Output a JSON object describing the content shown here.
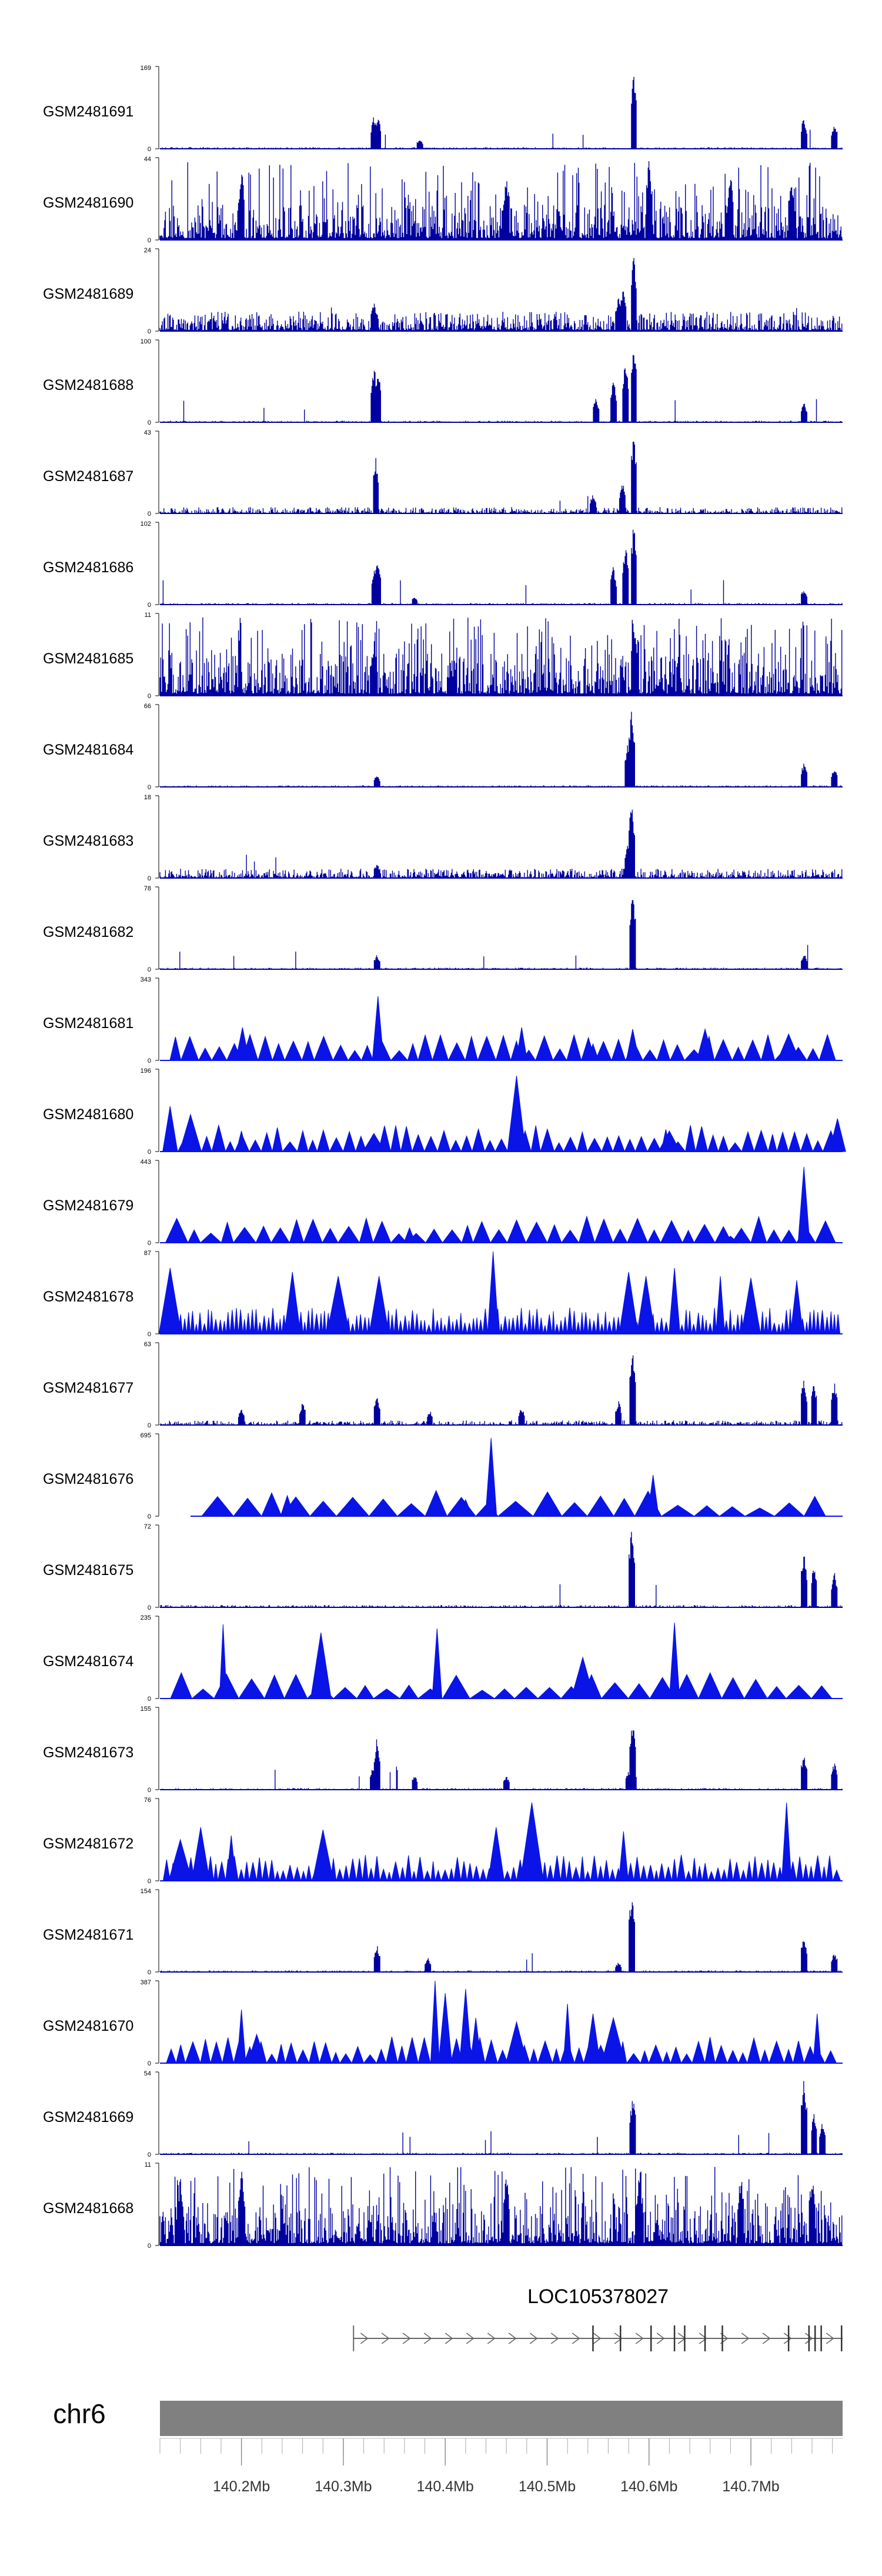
{
  "colors": {
    "signal": "#0000a0",
    "triangle": "#0a14e6",
    "axis": "#000000",
    "ideogram": "#808080",
    "gene": "#666666"
  },
  "chart_data": {
    "type": "area",
    "xunit": "Mb",
    "xlim": [
      140.12,
      140.79
    ],
    "tracks": [
      {
        "name": "GSM2481691",
        "ymax": "169",
        "ymin": "0",
        "style": "bars",
        "noise": 0.02,
        "peaks": [
          [
            140.33,
            0.42
          ],
          [
            140.334,
            0.4
          ],
          [
            140.585,
            1.0
          ],
          [
            140.752,
            0.4
          ],
          [
            140.782,
            0.32
          ],
          [
            140.375,
            0.12
          ]
        ]
      },
      {
        "name": "GSM2481690",
        "ymax": "44",
        "ymin": "0",
        "style": "bars",
        "noise": 0.45,
        "peaks": [
          [
            140.2,
            0.9
          ],
          [
            140.46,
            0.85
          ],
          [
            140.6,
            1.0
          ],
          [
            140.68,
            0.85
          ],
          [
            140.74,
            0.8
          ]
        ]
      },
      {
        "name": "GSM2481689",
        "ymax": "24",
        "ymin": "0",
        "style": "bars",
        "noise": 0.25,
        "peaks": [
          [
            140.33,
            0.38
          ],
          [
            140.575,
            0.55
          ],
          [
            140.585,
            1.0
          ],
          [
            140.57,
            0.45
          ]
        ]
      },
      {
        "name": "GSM2481688",
        "ymax": "100",
        "ymin": "0",
        "style": "bars",
        "noise": 0.02,
        "peaks": [
          [
            140.33,
            0.72
          ],
          [
            140.334,
            0.65
          ],
          [
            140.565,
            0.55
          ],
          [
            140.577,
            0.8
          ],
          [
            140.585,
            1.0
          ],
          [
            140.548,
            0.3
          ],
          [
            140.752,
            0.25
          ]
        ]
      },
      {
        "name": "GSM2481687",
        "ymax": "43",
        "ymin": "0",
        "style": "bars",
        "noise": 0.08,
        "peaks": [
          [
            140.332,
            0.7
          ],
          [
            140.574,
            0.4
          ],
          [
            140.585,
            1.0
          ],
          [
            140.545,
            0.25
          ]
        ]
      },
      {
        "name": "GSM2481686",
        "ymax": "102",
        "ymin": "0",
        "style": "bars",
        "noise": 0.02,
        "peaks": [
          [
            140.331,
            0.5
          ],
          [
            140.334,
            0.6
          ],
          [
            140.565,
            0.48
          ],
          [
            140.577,
            0.75
          ],
          [
            140.585,
            1.0
          ],
          [
            140.752,
            0.2
          ],
          [
            140.37,
            0.1
          ]
        ]
      },
      {
        "name": "GSM2481685",
        "ymax": "11",
        "ymin": "0",
        "style": "bars",
        "noise": 0.55,
        "peaks": [
          [
            140.585,
            1.0
          ],
          [
            140.33,
            0.7
          ]
        ]
      },
      {
        "name": "GSM2481684",
        "ymax": "66",
        "ymin": "0",
        "style": "bars",
        "noise": 0.02,
        "peaks": [
          [
            140.583,
            1.0
          ],
          [
            140.579,
            0.55
          ],
          [
            140.333,
            0.15
          ],
          [
            140.752,
            0.3
          ],
          [
            140.782,
            0.25
          ]
        ]
      },
      {
        "name": "GSM2481683",
        "ymax": "18",
        "ymin": "0",
        "style": "bars",
        "noise": 0.12,
        "peaks": [
          [
            140.583,
            1.0
          ],
          [
            140.579,
            0.4
          ],
          [
            140.333,
            0.18
          ]
        ]
      },
      {
        "name": "GSM2481682",
        "ymax": "78",
        "ymin": "0",
        "style": "bars",
        "noise": 0.02,
        "peaks": [
          [
            140.584,
            1.0
          ],
          [
            140.333,
            0.18
          ],
          [
            140.752,
            0.2
          ]
        ]
      },
      {
        "name": "GSM2481681",
        "ymax": "343",
        "ymin": "0",
        "style": "triangles",
        "count": 46,
        "spikes": [
          [
            140.334,
            0.78
          ],
          [
            140.475,
            0.4
          ],
          [
            140.201,
            0.4
          ],
          [
            140.545,
            0.2
          ],
          [
            140.584,
            0.38
          ],
          [
            140.655,
            0.38
          ],
          [
            140.737,
            0.32
          ],
          [
            140.775,
            0.25
          ]
        ]
      },
      {
        "name": "GSM2481680",
        "ymax": "196",
        "ymin": "0",
        "style": "triangles",
        "count": 58,
        "spikes": [
          [
            140.47,
            0.92
          ],
          [
            140.15,
            0.45
          ],
          [
            140.13,
            0.55
          ],
          [
            140.2,
            0.25
          ],
          [
            140.33,
            0.22
          ],
          [
            140.62,
            0.25
          ],
          [
            140.785,
            0.4
          ]
        ]
      },
      {
        "name": "GSM2481679",
        "ymax": "443",
        "ymin": "0",
        "style": "triangles",
        "count": 40,
        "spikes": [
          [
            140.752,
            0.92
          ],
          [
            140.585,
            0.15
          ],
          [
            140.365,
            0.18
          ],
          [
            140.68,
            0.08
          ]
        ]
      },
      {
        "name": "GSM2481678",
        "ymax": "87",
        "ymin": "0",
        "style": "triangles",
        "count": 170,
        "spikes": [
          [
            140.447,
            1.0
          ],
          [
            140.25,
            0.75
          ],
          [
            140.295,
            0.7
          ],
          [
            140.335,
            0.7
          ],
          [
            140.13,
            0.8
          ],
          [
            140.625,
            0.8
          ],
          [
            140.597,
            0.7
          ],
          [
            140.58,
            0.75
          ],
          [
            140.67,
            0.7
          ],
          [
            140.7,
            0.68
          ],
          [
            140.745,
            0.65
          ]
        ]
      },
      {
        "name": "GSM2481677",
        "ymax": "63",
        "ymin": "0",
        "style": "bars",
        "noise": 0.06,
        "peaks": [
          [
            140.333,
            0.35
          ],
          [
            140.584,
            1.0
          ],
          [
            140.752,
            0.6
          ],
          [
            140.762,
            0.55
          ],
          [
            140.782,
            0.55
          ],
          [
            140.26,
            0.28
          ],
          [
            140.2,
            0.2
          ],
          [
            140.475,
            0.22
          ],
          [
            140.385,
            0.18
          ],
          [
            140.57,
            0.3
          ]
        ]
      },
      {
        "name": "GSM2481676",
        "ymax": "695",
        "ymin": "0",
        "style": "triangles",
        "count": 24,
        "xmin": 140.15,
        "spikes": [
          [
            140.445,
            0.95
          ],
          [
            140.604,
            0.5
          ],
          [
            140.245,
            0.25
          ],
          [
            140.42,
            0.2
          ]
        ]
      },
      {
        "name": "GSM2481675",
        "ymax": "72",
        "ymin": "0",
        "style": "bars",
        "noise": 0.03,
        "peaks": [
          [
            140.583,
            1.0
          ],
          [
            140.752,
            0.7
          ],
          [
            140.762,
            0.55
          ],
          [
            140.782,
            0.45
          ]
        ]
      },
      {
        "name": "GSM2481674",
        "ymax": "235",
        "ymin": "0",
        "style": "triangles",
        "count": 30,
        "spikes": [
          [
            140.182,
            0.9
          ],
          [
            140.278,
            0.8
          ],
          [
            140.392,
            0.85
          ],
          [
            140.625,
            0.92
          ],
          [
            140.535,
            0.5
          ]
        ]
      },
      {
        "name": "GSM2481673",
        "ymax": "155",
        "ymin": "0",
        "style": "bars",
        "noise": 0.02,
        "peaks": [
          [
            140.333,
            0.65
          ],
          [
            140.329,
            0.3
          ],
          [
            140.584,
            0.9
          ],
          [
            140.58,
            0.25
          ],
          [
            140.752,
            0.45
          ],
          [
            140.782,
            0.35
          ],
          [
            140.37,
            0.18
          ],
          [
            140.46,
            0.18
          ]
        ]
      },
      {
        "name": "GSM2481672",
        "ymax": "76",
        "ymin": "0",
        "style": "triangles",
        "count": 110,
        "spikes": [
          [
            140.485,
            0.95
          ],
          [
            140.735,
            0.95
          ],
          [
            140.45,
            0.65
          ],
          [
            140.16,
            0.65
          ],
          [
            140.19,
            0.55
          ],
          [
            140.28,
            0.62
          ],
          [
            140.575,
            0.6
          ],
          [
            140.14,
            0.5
          ]
        ]
      },
      {
        "name": "GSM2481671",
        "ymax": "154",
        "ymin": "0",
        "style": "bars",
        "noise": 0.02,
        "peaks": [
          [
            140.583,
            1.0
          ],
          [
            140.333,
            0.35
          ],
          [
            140.383,
            0.18
          ],
          [
            140.752,
            0.45
          ],
          [
            140.782,
            0.25
          ],
          [
            140.57,
            0.12
          ]
        ]
      },
      {
        "name": "GSM2481670",
        "ymax": "387",
        "ymin": "0",
        "style": "triangles",
        "count": 62,
        "spikes": [
          [
            140.39,
            1.0
          ],
          [
            140.4,
            0.85
          ],
          [
            140.42,
            0.9
          ],
          [
            140.43,
            0.55
          ],
          [
            140.2,
            0.65
          ],
          [
            140.545,
            0.6
          ],
          [
            140.52,
            0.72
          ],
          [
            140.565,
            0.55
          ],
          [
            140.47,
            0.5
          ],
          [
            140.765,
            0.6
          ],
          [
            140.215,
            0.35
          ]
        ]
      },
      {
        "name": "GSM2481669",
        "ymax": "54",
        "ymin": "0",
        "style": "bars",
        "noise": 0.02,
        "peaks": [
          [
            140.584,
            0.75
          ],
          [
            140.752,
            1.0
          ],
          [
            140.762,
            0.55
          ],
          [
            140.77,
            0.4
          ]
        ]
      },
      {
        "name": "GSM2481668",
        "ymax": "11",
        "ymin": "0",
        "style": "bars",
        "noise": 0.55,
        "peaks": [
          [
            140.2,
            0.95
          ],
          [
            140.46,
            0.9
          ],
          [
            140.59,
            0.85
          ],
          [
            140.69,
            0.9
          ],
          [
            140.76,
            0.9
          ],
          [
            140.14,
            0.85
          ]
        ]
      }
    ],
    "gene": {
      "name": "LOC105378027",
      "start": 140.31,
      "end": 140.79,
      "exons": [
        140.545,
        140.572,
        140.602,
        140.625,
        140.635,
        140.655,
        140.672,
        140.737,
        140.757,
        140.763,
        140.769,
        140.789
      ]
    },
    "ideogram": {
      "chrom": "chr6",
      "ticks": [
        140.2,
        140.3,
        140.4,
        140.5,
        140.6,
        140.7
      ],
      "tick_labels": [
        "140.2Mb",
        "140.3Mb",
        "140.4Mb",
        "140.5Mb",
        "140.6Mb",
        "140.7Mb"
      ],
      "minor_step": 0.02
    }
  }
}
